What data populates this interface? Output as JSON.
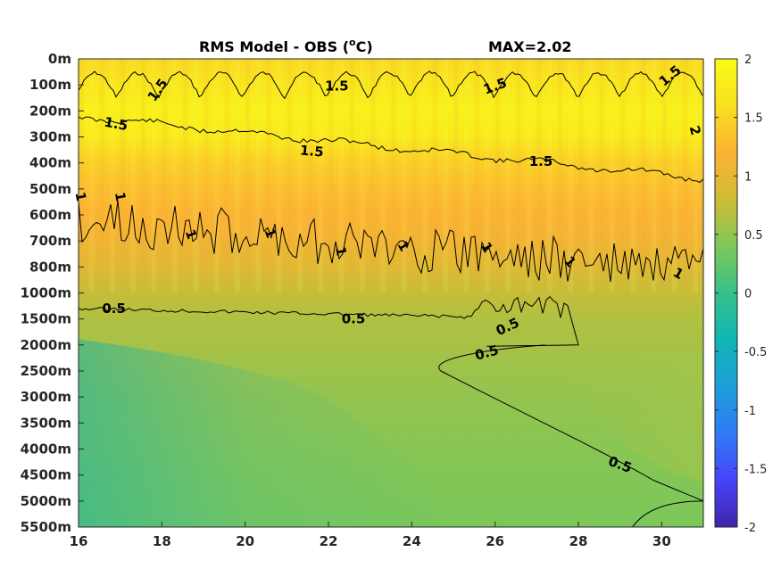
{
  "chart_data": {
    "type": "heatmap",
    "title": "RMS Model - OBS (",
    "title_unit_sup": "o",
    "title_unit_suffix": "C)",
    "max_text": "MAX=2.02",
    "x_ticks": [
      16,
      18,
      20,
      22,
      24,
      26,
      28,
      30
    ],
    "xlim": [
      16,
      31
    ],
    "y_tick_labels": [
      "0m",
      "100m",
      "200m",
      "300m",
      "400m",
      "500m",
      "600m",
      "700m",
      "800m",
      "1000m",
      "1500m",
      "2000m",
      "2500m",
      "3000m",
      "3500m",
      "4000m",
      "4500m",
      "5000m",
      "5500m"
    ],
    "colorbar": {
      "range": [
        -2,
        2
      ],
      "ticks": [
        2,
        1.5,
        1,
        0.5,
        0,
        -0.5,
        -1,
        -1.5,
        -2
      ],
      "tick_labels": [
        "2",
        "1.5",
        "1",
        "0.5",
        "0",
        "-0.5",
        "-1",
        "-1.5",
        "-2"
      ],
      "colormap": [
        "#3e26a8",
        "#4743f9",
        "#2f7cf5",
        "#1e9ed9",
        "#11b6b4",
        "#35c18a",
        "#7fc758",
        "#cfbc34",
        "#fcb334",
        "#f9e01f",
        "#f9fb15"
      ]
    },
    "field_rows": [
      {
        "depth": "0m",
        "value": 1.55
      },
      {
        "depth": "100m",
        "value": 1.7
      },
      {
        "depth": "200m",
        "value": 1.85
      },
      {
        "depth": "300m",
        "value": 1.75
      },
      {
        "depth": "400m",
        "value": 1.45
      },
      {
        "depth": "500m",
        "value": 1.3
      },
      {
        "depth": "600m",
        "value": 1.2
      },
      {
        "depth": "700m",
        "value": 1.1
      },
      {
        "depth": "800m",
        "value": 0.95
      },
      {
        "depth": "1000m",
        "value": 0.75
      },
      {
        "depth": "1500m",
        "value": 0.65
      },
      {
        "depth": "2000m",
        "value": 0.6
      },
      {
        "depth": "2500m",
        "value": 0.55
      },
      {
        "depth": "3000m",
        "value": 0.5
      },
      {
        "depth": "3500m",
        "value": 0.48
      },
      {
        "depth": "4000m",
        "value": 0.45
      },
      {
        "depth": "4500m",
        "value": 0.42
      },
      {
        "depth": "5000m",
        "value": 0.4
      },
      {
        "depth": "5500m",
        "value": 0.38
      }
    ],
    "contours": [
      {
        "level": 1.5,
        "labels": [
          {
            "text": "1.5",
            "x": 17.9,
            "y_index": 1.2,
            "angle": -55
          },
          {
            "text": "1.5",
            "x": 22.2,
            "y_index": 1.05,
            "angle": 0
          },
          {
            "text": "1.5",
            "x": 26.0,
            "y_index": 1.05,
            "angle": -20
          },
          {
            "text": "1.5",
            "x": 30.2,
            "y_index": 0.65,
            "angle": -40
          },
          {
            "text": "1.5",
            "x": 16.9,
            "y_index": 2.5,
            "angle": 10
          },
          {
            "text": "1.5",
            "x": 21.6,
            "y_index": 3.55,
            "angle": 5
          },
          {
            "text": "1.5",
            "x": 27.1,
            "y_index": 3.95,
            "angle": 0
          }
        ]
      },
      {
        "level": 2,
        "labels": [
          {
            "text": "2",
            "x": 30.8,
            "y_index": 2.75,
            "angle": 75
          }
        ]
      },
      {
        "level": 1,
        "labels": [
          {
            "text": "1",
            "x": 16.05,
            "y_index": 5.3,
            "angle": 80
          },
          {
            "text": "1",
            "x": 17.0,
            "y_index": 5.3,
            "angle": 80
          },
          {
            "text": "1",
            "x": 18.7,
            "y_index": 6.75,
            "angle": 70
          },
          {
            "text": "1",
            "x": 20.6,
            "y_index": 6.7,
            "angle": 70
          },
          {
            "text": "1",
            "x": 22.3,
            "y_index": 7.4,
            "angle": 80
          },
          {
            "text": "1",
            "x": 23.8,
            "y_index": 7.2,
            "angle": 60
          },
          {
            "text": "1",
            "x": 25.8,
            "y_index": 7.25,
            "angle": 60
          },
          {
            "text": "1",
            "x": 27.8,
            "y_index": 7.8,
            "angle": 50
          },
          {
            "text": "1",
            "x": 30.4,
            "y_index": 8.25,
            "angle": 30
          }
        ]
      },
      {
        "level": 0.5,
        "labels": [
          {
            "text": "0.5",
            "x": 16.85,
            "y_index": 9.6,
            "angle": 0
          },
          {
            "text": "0.5",
            "x": 22.6,
            "y_index": 10.0,
            "angle": 0
          },
          {
            "text": "0.5",
            "x": 26.3,
            "y_index": 10.3,
            "angle": -25
          },
          {
            "text": "0.5",
            "x": 25.8,
            "y_index": 11.3,
            "angle": -15
          },
          {
            "text": "0.5",
            "x": 29.0,
            "y_index": 15.6,
            "angle": 20
          }
        ]
      }
    ]
  }
}
